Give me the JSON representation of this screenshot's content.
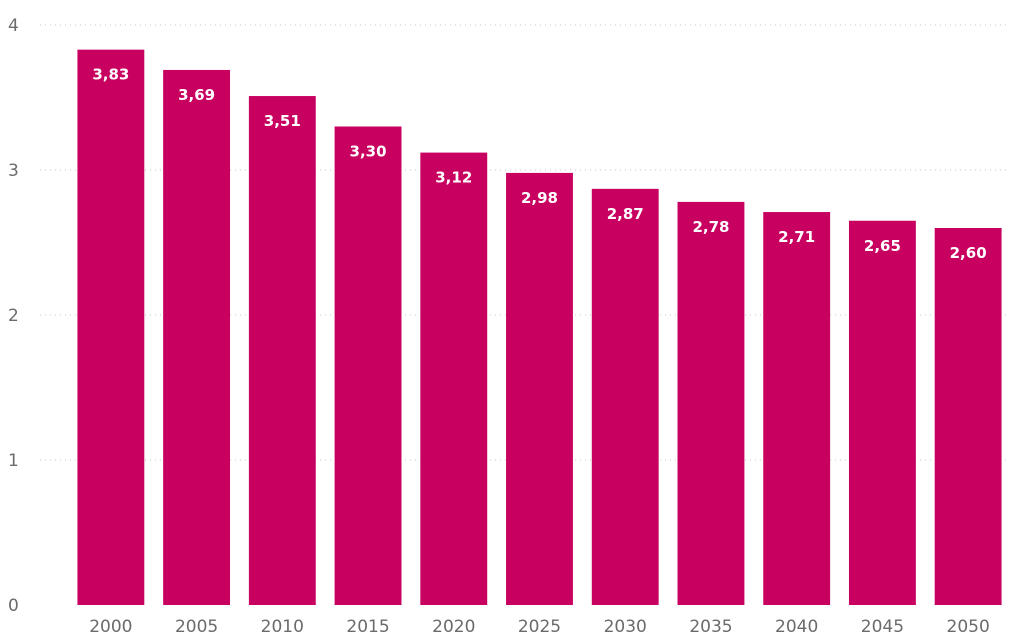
{
  "chart_data": {
    "type": "bar",
    "categories": [
      "2000",
      "2005",
      "2010",
      "2015",
      "2020",
      "2025",
      "2030",
      "2035",
      "2040",
      "2045",
      "2050"
    ],
    "values": [
      3.83,
      3.69,
      3.51,
      3.3,
      3.12,
      2.98,
      2.87,
      2.78,
      2.71,
      2.65,
      2.6
    ],
    "data_labels": [
      "3,83",
      "3,69",
      "3,51",
      "3,30",
      "3,12",
      "2,98",
      "2,87",
      "2,78",
      "2,71",
      "2,65",
      "2,60"
    ],
    "yticks": [
      0,
      1,
      2,
      3,
      4
    ],
    "ylim": [
      0,
      4
    ],
    "title": "",
    "xlabel": "",
    "ylabel": "",
    "grid": true,
    "legend": "none",
    "bar_color": "#C8005F",
    "label_color": "#FFFFFF"
  }
}
